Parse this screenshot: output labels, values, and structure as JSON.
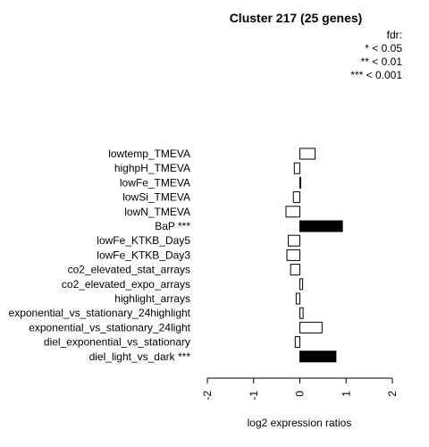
{
  "chart_data": {
    "type": "bar",
    "orientation": "horizontal",
    "title": "Cluster 217 (25 genes)",
    "xlabel": "log2 expression ratios",
    "ylabel": "",
    "xlim": [
      -2,
      2
    ],
    "xticks": [
      "-2",
      "-1",
      "0",
      "1",
      "2"
    ],
    "categories": [
      "lowtemp_TMEVA",
      "highpH_TMEVA",
      "lowFe_TMEVA",
      "lowSi_TMEVA",
      "lowN_TMEVA",
      "BaP ***",
      "lowFe_KTKB_Day5",
      "lowFe_KTKB_Day3",
      "co2_elevated_stat_arrays",
      "co2_elevated_expo_arrays",
      "highlight_arrays",
      "exponential_vs_stationary_24highlight",
      "exponential_vs_stationary_24light",
      "diel_exponential_vs_stationary",
      "diel_light_vs_dark ***"
    ],
    "values": [
      0.33,
      -0.12,
      0.01,
      -0.14,
      -0.3,
      0.92,
      -0.25,
      -0.28,
      -0.2,
      0.06,
      -0.08,
      0.07,
      0.48,
      -0.1,
      0.78
    ],
    "significant": [
      false,
      false,
      false,
      false,
      false,
      true,
      false,
      false,
      false,
      false,
      false,
      false,
      false,
      false,
      true
    ],
    "colors": {
      "significant": "#000000",
      "normal": "#ffffff",
      "stroke": "#000000"
    },
    "legend": {
      "title": "fdr:",
      "items": [
        "* < 0.05",
        "** < 0.01",
        "*** < 0.001"
      ],
      "placement": "top-right"
    }
  }
}
